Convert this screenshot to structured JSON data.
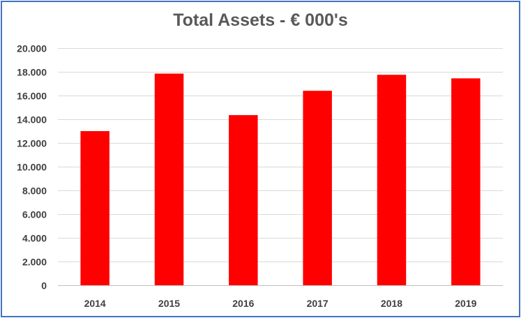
{
  "chart_data": {
    "type": "bar",
    "title": "Total Assets - € 000's",
    "xlabel": "",
    "ylabel": "",
    "categories": [
      "2014",
      "2015",
      "2016",
      "2017",
      "2018",
      "2019"
    ],
    "values": [
      13000,
      17850,
      14350,
      16400,
      17750,
      17450
    ],
    "ylim": [
      0,
      20000
    ],
    "yticks": [
      0,
      2000,
      4000,
      6000,
      8000,
      10000,
      12000,
      14000,
      16000,
      18000,
      20000
    ],
    "ytick_labels": [
      "0",
      "2.000",
      "4.000",
      "6.000",
      "8.000",
      "10.000",
      "12.000",
      "14.000",
      "16.000",
      "18.000",
      "20.000"
    ],
    "grid": true,
    "legend": "none",
    "bar_color": "#ff0000",
    "grid_color": "#d9d9d9",
    "border_color": "#4472c4"
  }
}
